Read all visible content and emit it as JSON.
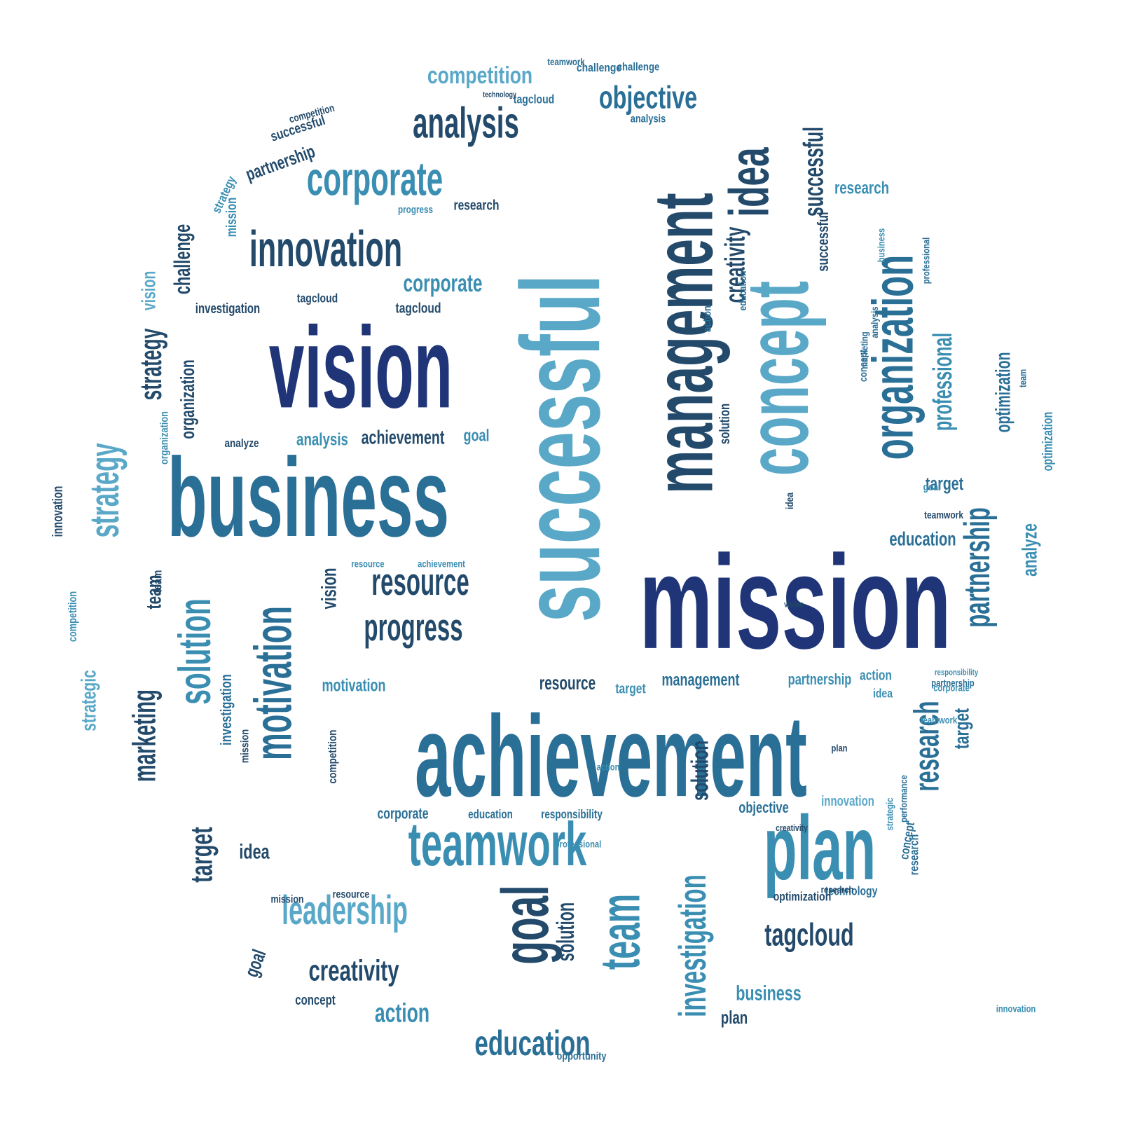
{
  "palette": {
    "navy": "#1f3577",
    "dark": "#234a6b",
    "mid": "#2a6f96",
    "teal": "#3a8eb2",
    "light": "#5aa8c8",
    "pale": "#7cbad6",
    "background": "#ffffff"
  },
  "words": [
    {
      "text": "mission",
      "tone": "navy"
    },
    {
      "text": "achievement",
      "tone": "mid"
    },
    {
      "text": "business",
      "tone": "mid"
    },
    {
      "text": "vision",
      "tone": "navy"
    },
    {
      "text": "successful",
      "tone": "light"
    },
    {
      "text": "management",
      "tone": "dark"
    },
    {
      "text": "concept",
      "tone": "light"
    },
    {
      "text": "organization",
      "tone": "mid"
    },
    {
      "text": "idea",
      "tone": "dark"
    },
    {
      "text": "successful",
      "tone": "dark"
    },
    {
      "text": "innovation",
      "tone": "dark"
    },
    {
      "text": "corporate",
      "tone": "teal"
    },
    {
      "text": "analysis",
      "tone": "dark"
    },
    {
      "text": "competition",
      "tone": "light"
    },
    {
      "text": "objective",
      "tone": "mid"
    },
    {
      "text": "teamwork",
      "tone": "teal"
    },
    {
      "text": "challenge",
      "tone": "mid"
    },
    {
      "text": "strategy",
      "tone": "light"
    },
    {
      "text": "solution",
      "tone": "teal"
    },
    {
      "text": "motivation",
      "tone": "mid"
    },
    {
      "text": "marketing",
      "tone": "dark"
    },
    {
      "text": "strategic",
      "tone": "light"
    },
    {
      "text": "challenge",
      "tone": "dark"
    },
    {
      "text": "vision",
      "tone": "light"
    },
    {
      "text": "strategy",
      "tone": "dark"
    },
    {
      "text": "partnership",
      "tone": "dark"
    },
    {
      "text": "successful",
      "tone": "dark"
    },
    {
      "text": "competition",
      "tone": "dark"
    },
    {
      "text": "resource",
      "tone": "dark"
    },
    {
      "text": "progress",
      "tone": "dark"
    },
    {
      "text": "analysis",
      "tone": "teal"
    },
    {
      "text": "achievement",
      "tone": "dark"
    },
    {
      "text": "goal",
      "tone": "teal"
    },
    {
      "text": "analyze",
      "tone": "dark"
    },
    {
      "text": "organization",
      "tone": "dark"
    },
    {
      "text": "corporate",
      "tone": "teal"
    },
    {
      "text": "investigation",
      "tone": "dark"
    },
    {
      "text": "tagcloud",
      "tone": "dark"
    },
    {
      "text": "progress",
      "tone": "teal"
    },
    {
      "text": "research",
      "tone": "dark"
    },
    {
      "text": "mission",
      "tone": "teal"
    },
    {
      "text": "motivation",
      "tone": "teal"
    },
    {
      "text": "resource",
      "tone": "dark"
    },
    {
      "text": "target",
      "tone": "teal"
    },
    {
      "text": "management",
      "tone": "mid"
    },
    {
      "text": "partnership",
      "tone": "teal"
    },
    {
      "text": "action",
      "tone": "teal"
    },
    {
      "text": "plan",
      "tone": "teal"
    },
    {
      "text": "research",
      "tone": "mid"
    },
    {
      "text": "partnership",
      "tone": "mid"
    },
    {
      "text": "professional",
      "tone": "teal"
    },
    {
      "text": "optimization",
      "tone": "mid"
    },
    {
      "text": "analyze",
      "tone": "teal"
    },
    {
      "text": "target",
      "tone": "mid"
    },
    {
      "text": "education",
      "tone": "mid"
    },
    {
      "text": "teamwork",
      "tone": "dark"
    },
    {
      "text": "research",
      "tone": "teal"
    },
    {
      "text": "successful",
      "tone": "dark"
    },
    {
      "text": "goal",
      "tone": "dark"
    },
    {
      "text": "team",
      "tone": "teal"
    },
    {
      "text": "leadership",
      "tone": "light"
    },
    {
      "text": "creativity",
      "tone": "dark"
    },
    {
      "text": "solution",
      "tone": "dark"
    },
    {
      "text": "investigation",
      "tone": "teal"
    },
    {
      "text": "tagcloud",
      "tone": "dark"
    },
    {
      "text": "business",
      "tone": "teal"
    },
    {
      "text": "plan",
      "tone": "dark"
    },
    {
      "text": "education",
      "tone": "mid"
    },
    {
      "text": "action",
      "tone": "teal"
    },
    {
      "text": "concept",
      "tone": "dark"
    },
    {
      "text": "corporate",
      "tone": "mid"
    },
    {
      "text": "education",
      "tone": "mid"
    },
    {
      "text": "responsibility",
      "tone": "mid"
    },
    {
      "text": "objective",
      "tone": "mid"
    },
    {
      "text": "innovation",
      "tone": "light"
    },
    {
      "text": "idea",
      "tone": "dark"
    },
    {
      "text": "target",
      "tone": "dark"
    },
    {
      "text": "team",
      "tone": "dark"
    },
    {
      "text": "resource",
      "tone": "dark"
    },
    {
      "text": "mission",
      "tone": "dark"
    },
    {
      "text": "goal",
      "tone": "dark"
    },
    {
      "text": "competition",
      "tone": "teal"
    },
    {
      "text": "innovation",
      "tone": "dark"
    },
    {
      "text": "opportunity",
      "tone": "mid"
    },
    {
      "text": "tagcloud",
      "tone": "mid"
    },
    {
      "text": "technology",
      "tone": "dark"
    },
    {
      "text": "teamwork",
      "tone": "mid"
    },
    {
      "text": "challenge",
      "tone": "mid"
    },
    {
      "text": "creativity",
      "tone": "dark"
    },
    {
      "text": "optimization",
      "tone": "dark"
    },
    {
      "text": "technology",
      "tone": "mid"
    },
    {
      "text": "optimization",
      "tone": "teal"
    },
    {
      "text": "vision",
      "tone": "dark"
    },
    {
      "text": "solution",
      "tone": "dark"
    },
    {
      "text": "plan",
      "tone": "dark"
    },
    {
      "text": "partnership",
      "tone": "mid"
    },
    {
      "text": "resource",
      "tone": "teal"
    },
    {
      "text": "achievement",
      "tone": "teal"
    },
    {
      "text": "team",
      "tone": "dark"
    },
    {
      "text": "analysis",
      "tone": "mid"
    },
    {
      "text": "performance",
      "tone": "mid"
    },
    {
      "text": "responsibility",
      "tone": "teal"
    },
    {
      "text": "corporate",
      "tone": "teal"
    },
    {
      "text": "teamwork",
      "tone": "teal"
    },
    {
      "text": "strategy",
      "tone": "teal"
    },
    {
      "text": "creativity",
      "tone": "dark"
    },
    {
      "text": "analysis",
      "tone": "mid"
    },
    {
      "text": "tagcloud",
      "tone": "dark"
    },
    {
      "text": "investigation",
      "tone": "mid"
    },
    {
      "text": "research",
      "tone": "mid"
    },
    {
      "text": "action",
      "tone": "mid"
    },
    {
      "text": "concept",
      "tone": "mid"
    },
    {
      "text": "solution",
      "tone": "dark"
    },
    {
      "text": "idea",
      "tone": "dark"
    },
    {
      "text": "vision",
      "tone": "dark"
    },
    {
      "text": "education",
      "tone": "mid"
    },
    {
      "text": "organization",
      "tone": "teal"
    },
    {
      "text": "professional",
      "tone": "mid"
    },
    {
      "text": "team",
      "tone": "mid"
    },
    {
      "text": "competition",
      "tone": "dark"
    },
    {
      "text": "innovation",
      "tone": "teal"
    },
    {
      "text": "target",
      "tone": "mid"
    },
    {
      "text": "idea",
      "tone": "teal"
    },
    {
      "text": "marketing",
      "tone": "mid"
    },
    {
      "text": "goal",
      "tone": "teal"
    },
    {
      "text": "business",
      "tone": "teal"
    },
    {
      "text": "strategic",
      "tone": "teal"
    },
    {
      "text": "professional",
      "tone": "teal"
    },
    {
      "text": "concept",
      "tone": "mid"
    },
    {
      "text": "action",
      "tone": "teal"
    },
    {
      "text": "research",
      "tone": "dark"
    },
    {
      "text": "mission",
      "tone": "dark"
    },
    {
      "text": "strategic",
      "tone": "teal"
    },
    {
      "text": "solution",
      "tone": "teal"
    }
  ]
}
